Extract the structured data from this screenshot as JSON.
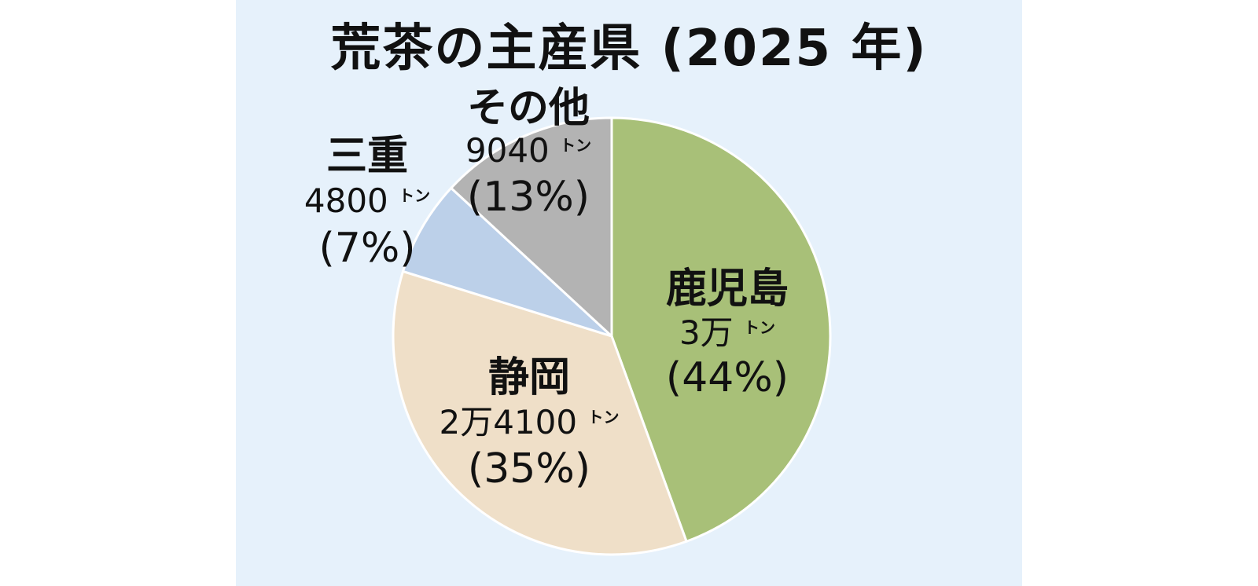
{
  "title": "荒茶の主産県 (2025 年)",
  "chart_data": {
    "type": "pie",
    "title": "荒茶の主産県 (2025 年)",
    "slices": [
      {
        "name": "鹿児島",
        "amount": "3万",
        "unit": "トン",
        "pct_label": "(44%)",
        "value": 44,
        "color": "#a8c078"
      },
      {
        "name": "静岡",
        "amount": "2万4100",
        "unit": "トン",
        "pct_label": "(35%)",
        "value": 35,
        "color": "#efdfc8"
      },
      {
        "name": "三重",
        "amount": "4800",
        "unit": "トン",
        "pct_label": "(7%)",
        "value": 7,
        "color": "#bcd0e9"
      },
      {
        "name": "その他",
        "amount": "9040",
        "unit": "トン",
        "pct_label": "(13%)",
        "value": 13,
        "color": "#b3b3b3"
      }
    ]
  }
}
